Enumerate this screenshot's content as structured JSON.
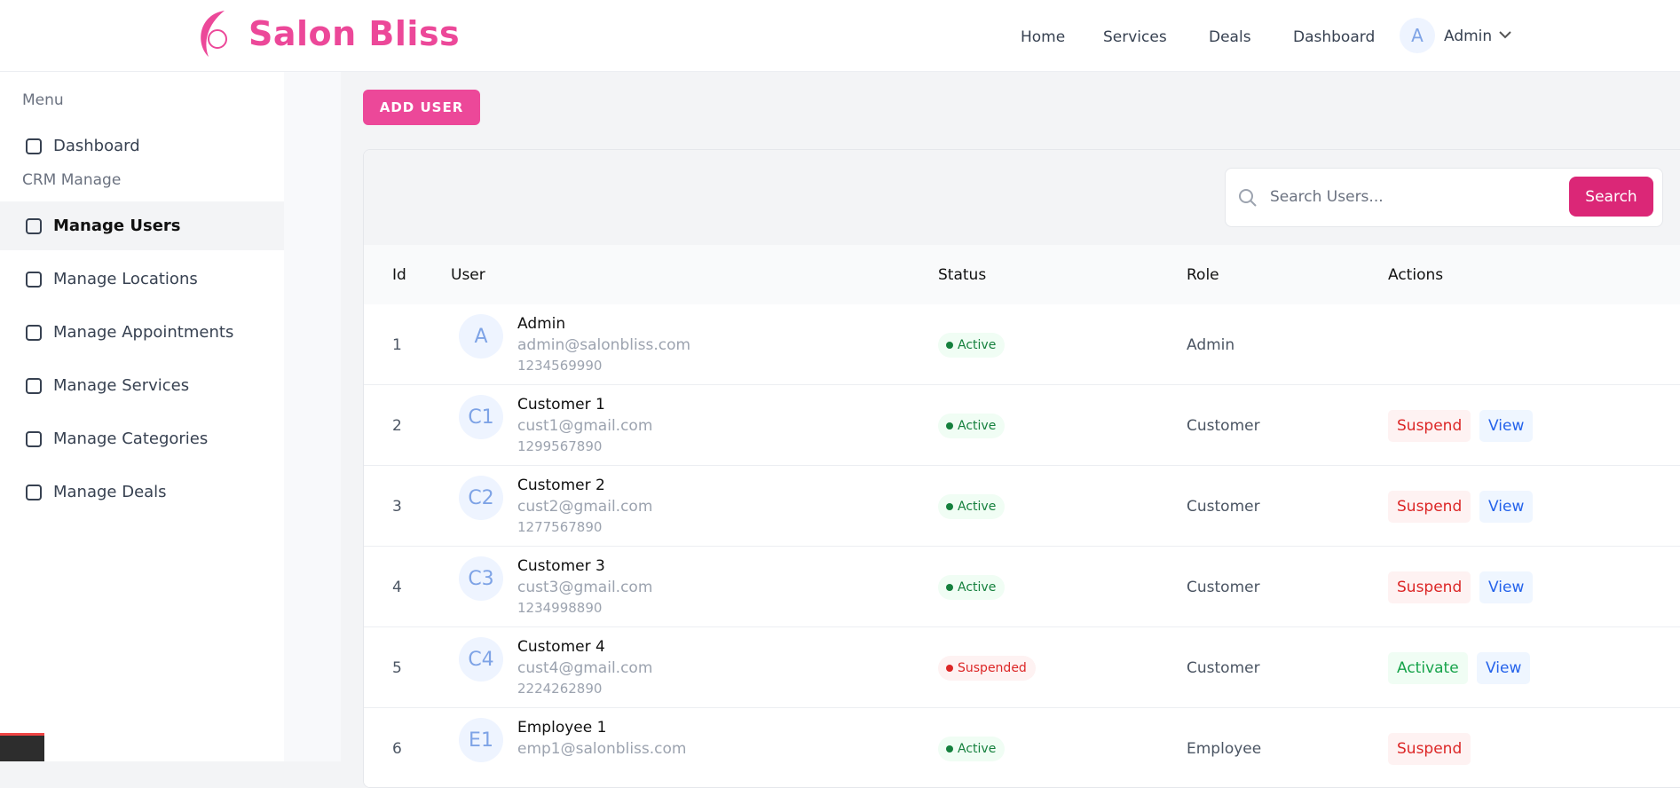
{
  "header": {
    "brand": "Salon Bliss",
    "nav": [
      "Home",
      "Services",
      "Deals",
      "Dashboard"
    ],
    "user": {
      "initial": "A",
      "name": "Admin"
    }
  },
  "sidebar": {
    "sections": [
      {
        "title": "Menu",
        "items": [
          "Dashboard"
        ]
      },
      {
        "title": "CRM Manage",
        "items": [
          "Manage Users",
          "Manage Locations",
          "Manage Appointments",
          "Manage Services",
          "Manage Categories",
          "Manage Deals"
        ]
      }
    ],
    "active": "Manage Users"
  },
  "add_button": "ADD USER",
  "search": {
    "placeholder": "Search Users...",
    "button": "Search"
  },
  "table": {
    "columns": [
      "Id",
      "User",
      "Status",
      "Role",
      "Actions"
    ],
    "rows": [
      {
        "id": "1",
        "initials": "A",
        "name": "Admin",
        "email": "admin@salonbliss.com",
        "phone": "1234569990",
        "status": "Active",
        "role": "Admin",
        "actions": []
      },
      {
        "id": "2",
        "initials": "C1",
        "name": "Customer 1",
        "email": "cust1@gmail.com",
        "phone": "1299567890",
        "status": "Active",
        "role": "Customer",
        "actions": [
          "Suspend",
          "View"
        ]
      },
      {
        "id": "3",
        "initials": "C2",
        "name": "Customer 2",
        "email": "cust2@gmail.com",
        "phone": "1277567890",
        "status": "Active",
        "role": "Customer",
        "actions": [
          "Suspend",
          "View"
        ]
      },
      {
        "id": "4",
        "initials": "C3",
        "name": "Customer 3",
        "email": "cust3@gmail.com",
        "phone": "1234998890",
        "status": "Active",
        "role": "Customer",
        "actions": [
          "Suspend",
          "View"
        ]
      },
      {
        "id": "5",
        "initials": "C4",
        "name": "Customer 4",
        "email": "cust4@gmail.com",
        "phone": "2224262890",
        "status": "Suspended",
        "role": "Customer",
        "actions": [
          "Activate",
          "View"
        ]
      },
      {
        "id": "6",
        "initials": "E1",
        "name": "Employee 1",
        "email": "emp1@salonbliss.com",
        "phone": "",
        "status": "Active",
        "role": "Employee",
        "actions": [
          "Suspend"
        ]
      }
    ]
  }
}
